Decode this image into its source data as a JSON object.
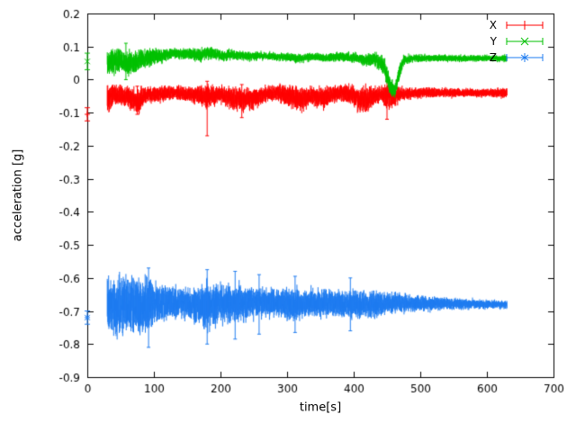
{
  "chart_data": {
    "type": "line",
    "subtype": "errorbar-time-series",
    "title": "",
    "xlabel": "time[s]",
    "ylabel": "acceleration [g]",
    "xlim": [
      0,
      700
    ],
    "ylim": [
      -0.9,
      0.2
    ],
    "xticks": [
      0,
      100,
      200,
      300,
      400,
      500,
      600,
      700
    ],
    "yticks": [
      -0.9,
      -0.8,
      -0.7,
      -0.6,
      -0.5,
      -0.4,
      -0.3,
      -0.2,
      -0.1,
      0,
      0.1,
      0.2
    ],
    "grid": false,
    "legend_position": "top-right",
    "band_format": [
      "t",
      "mean",
      "spread"
    ],
    "spike_format": [
      "t",
      "low",
      "high"
    ],
    "series": [
      {
        "name": "X",
        "color": "#ff0000",
        "marker": "plus",
        "icon": "plus-errorbar-icon",
        "start_point": {
          "t": 0,
          "value": -0.105,
          "err": 0.02
        },
        "band": [
          [
            30,
            -0.055,
            0.055
          ],
          [
            40,
            -0.045,
            0.04
          ],
          [
            55,
            -0.05,
            0.035
          ],
          [
            70,
            -0.06,
            0.045
          ],
          [
            75,
            -0.075,
            0.05
          ],
          [
            85,
            -0.05,
            0.035
          ],
          [
            100,
            -0.045,
            0.03
          ],
          [
            130,
            -0.04,
            0.025
          ],
          [
            160,
            -0.045,
            0.03
          ],
          [
            178,
            -0.05,
            0.045
          ],
          [
            185,
            -0.05,
            0.04
          ],
          [
            200,
            -0.045,
            0.03
          ],
          [
            225,
            -0.06,
            0.045
          ],
          [
            245,
            -0.06,
            0.04
          ],
          [
            265,
            -0.045,
            0.03
          ],
          [
            285,
            -0.04,
            0.03
          ],
          [
            305,
            -0.05,
            0.04
          ],
          [
            320,
            -0.06,
            0.045
          ],
          [
            335,
            -0.05,
            0.035
          ],
          [
            355,
            -0.055,
            0.04
          ],
          [
            375,
            -0.04,
            0.03
          ],
          [
            395,
            -0.045,
            0.035
          ],
          [
            410,
            -0.06,
            0.05
          ],
          [
            425,
            -0.055,
            0.045
          ],
          [
            440,
            -0.045,
            0.03
          ],
          [
            455,
            -0.05,
            0.05
          ],
          [
            470,
            -0.045,
            0.025
          ],
          [
            490,
            -0.04,
            0.02
          ],
          [
            530,
            -0.04,
            0.018
          ],
          [
            570,
            -0.04,
            0.016
          ],
          [
            600,
            -0.04,
            0.016
          ],
          [
            630,
            -0.04,
            0.02
          ]
        ],
        "spikes": [
          [
            75,
            -0.105,
            -0.02
          ],
          [
            180,
            -0.17,
            -0.005
          ],
          [
            232,
            -0.115,
            -0.015
          ],
          [
            450,
            -0.12,
            -0.005
          ]
        ]
      },
      {
        "name": "Y",
        "color": "#00c000",
        "marker": "x",
        "icon": "x-errorbar-icon",
        "start_point": {
          "t": 0,
          "value": 0.055,
          "err": 0.025
        },
        "band": [
          [
            30,
            0.05,
            0.05
          ],
          [
            45,
            0.06,
            0.045
          ],
          [
            60,
            0.05,
            0.045
          ],
          [
            75,
            0.055,
            0.04
          ],
          [
            90,
            0.065,
            0.035
          ],
          [
            110,
            0.07,
            0.025
          ],
          [
            130,
            0.08,
            0.02
          ],
          [
            150,
            0.078,
            0.02
          ],
          [
            170,
            0.075,
            0.025
          ],
          [
            185,
            0.082,
            0.025
          ],
          [
            200,
            0.072,
            0.02
          ],
          [
            220,
            0.075,
            0.018
          ],
          [
            240,
            0.07,
            0.018
          ],
          [
            260,
            0.072,
            0.015
          ],
          [
            280,
            0.07,
            0.015
          ],
          [
            300,
            0.068,
            0.015
          ],
          [
            320,
            0.064,
            0.018
          ],
          [
            340,
            0.07,
            0.015
          ],
          [
            360,
            0.066,
            0.015
          ],
          [
            380,
            0.07,
            0.018
          ],
          [
            400,
            0.066,
            0.02
          ],
          [
            415,
            0.06,
            0.022
          ],
          [
            430,
            0.062,
            0.025
          ],
          [
            445,
            0.045,
            0.035
          ],
          [
            455,
            -0.02,
            0.035
          ],
          [
            462,
            -0.035,
            0.025
          ],
          [
            468,
            0.02,
            0.03
          ],
          [
            475,
            0.06,
            0.02
          ],
          [
            490,
            0.065,
            0.015
          ],
          [
            520,
            0.065,
            0.013
          ],
          [
            560,
            0.064,
            0.012
          ],
          [
            600,
            0.065,
            0.012
          ],
          [
            630,
            0.064,
            0.014
          ]
        ],
        "spikes": [
          [
            58,
            0.0,
            0.11
          ]
        ]
      },
      {
        "name": "Z",
        "color": "#1f7cf0",
        "marker": "star",
        "icon": "star-errorbar-icon",
        "start_point": {
          "t": 0,
          "value": -0.72,
          "err": 0.02
        },
        "band": [
          [
            30,
            -0.68,
            0.1
          ],
          [
            45,
            -0.69,
            0.11
          ],
          [
            60,
            -0.68,
            0.1
          ],
          [
            75,
            -0.68,
            0.09
          ],
          [
            90,
            -0.685,
            0.11
          ],
          [
            100,
            -0.675,
            0.075
          ],
          [
            120,
            -0.675,
            0.06
          ],
          [
            145,
            -0.675,
            0.06
          ],
          [
            165,
            -0.68,
            0.07
          ],
          [
            180,
            -0.685,
            0.09
          ],
          [
            195,
            -0.675,
            0.075
          ],
          [
            215,
            -0.675,
            0.07
          ],
          [
            235,
            -0.678,
            0.065
          ],
          [
            255,
            -0.675,
            0.055
          ],
          [
            275,
            -0.675,
            0.05
          ],
          [
            295,
            -0.678,
            0.055
          ],
          [
            312,
            -0.682,
            0.06
          ],
          [
            330,
            -0.676,
            0.05
          ],
          [
            350,
            -0.676,
            0.05
          ],
          [
            370,
            -0.676,
            0.048
          ],
          [
            390,
            -0.678,
            0.05
          ],
          [
            410,
            -0.68,
            0.052
          ],
          [
            430,
            -0.68,
            0.05
          ],
          [
            450,
            -0.676,
            0.04
          ],
          [
            470,
            -0.676,
            0.035
          ],
          [
            490,
            -0.676,
            0.03
          ],
          [
            520,
            -0.678,
            0.026
          ],
          [
            550,
            -0.678,
            0.022
          ],
          [
            580,
            -0.679,
            0.018
          ],
          [
            610,
            -0.68,
            0.015
          ],
          [
            630,
            -0.68,
            0.015
          ]
        ],
        "spikes": [
          [
            92,
            -0.81,
            -0.57
          ],
          [
            180,
            -0.8,
            -0.575
          ],
          [
            222,
            -0.785,
            -0.58
          ],
          [
            258,
            -0.77,
            -0.59
          ],
          [
            312,
            -0.765,
            -0.595
          ],
          [
            395,
            -0.76,
            -0.6
          ]
        ]
      }
    ]
  }
}
